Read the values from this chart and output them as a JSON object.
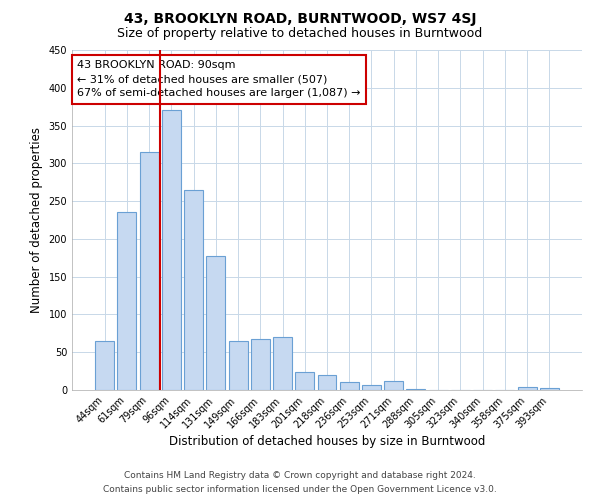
{
  "title": "43, BROOKLYN ROAD, BURNTWOOD, WS7 4SJ",
  "subtitle": "Size of property relative to detached houses in Burntwood",
  "xlabel": "Distribution of detached houses by size in Burntwood",
  "ylabel": "Number of detached properties",
  "categories": [
    "44sqm",
    "61sqm",
    "79sqm",
    "96sqm",
    "114sqm",
    "131sqm",
    "149sqm",
    "166sqm",
    "183sqm",
    "201sqm",
    "218sqm",
    "236sqm",
    "253sqm",
    "271sqm",
    "288sqm",
    "305sqm",
    "323sqm",
    "340sqm",
    "358sqm",
    "375sqm",
    "393sqm"
  ],
  "values": [
    65,
    235,
    315,
    370,
    265,
    178,
    65,
    67,
    70,
    24,
    20,
    11,
    7,
    12,
    1,
    0,
    0,
    0,
    0,
    4,
    2
  ],
  "bar_color": "#c6d9f1",
  "bar_edge_color": "#6aa0d4",
  "vline_color": "#cc0000",
  "vline_x": 2.5,
  "annotation_box_color": "#cc0000",
  "annotation_lines": [
    "43 BROOKLYN ROAD: 90sqm",
    "← 31% of detached houses are smaller (507)",
    "67% of semi-detached houses are larger (1,087) →"
  ],
  "ylim": [
    0,
    450
  ],
  "yticks": [
    0,
    50,
    100,
    150,
    200,
    250,
    300,
    350,
    400,
    450
  ],
  "footer_line1": "Contains HM Land Registry data © Crown copyright and database right 2024.",
  "footer_line2": "Contains public sector information licensed under the Open Government Licence v3.0.",
  "bg_color": "#ffffff",
  "grid_color": "#c8d8e8",
  "title_fontsize": 10,
  "subtitle_fontsize": 9,
  "axis_label_fontsize": 8.5,
  "tick_fontsize": 7,
  "annotation_fontsize": 8,
  "footer_fontsize": 6.5
}
